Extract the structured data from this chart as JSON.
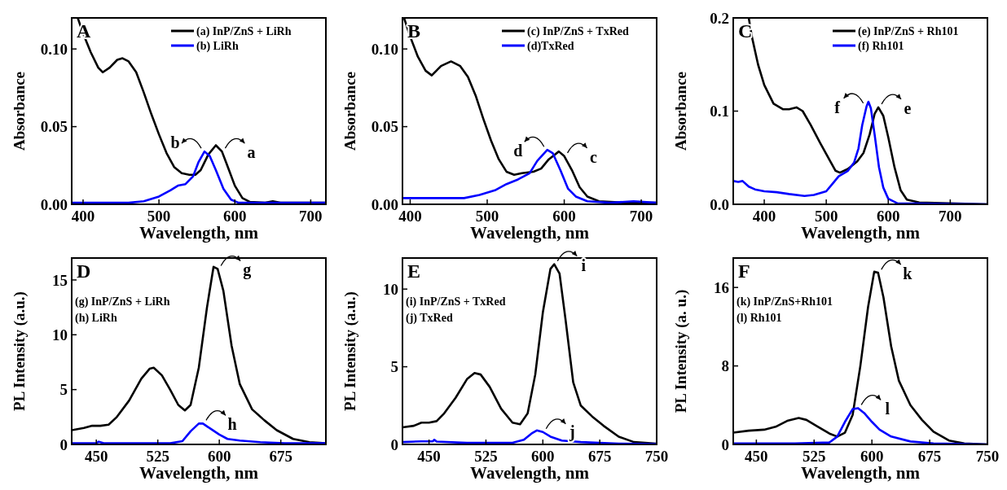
{
  "chart_data": [
    {
      "type": "line",
      "xlabel": "Wavelength, nm",
      "ylabel": "Absorbance",
      "xlim": [
        385,
        720
      ],
      "ylim": [
        0,
        0.12
      ],
      "xticks": [
        400,
        500,
        600,
        700
      ],
      "yticks": [
        {
          "value": 0,
          "label": "0.00"
        },
        {
          "value": 0.05,
          "label": "0.05"
        },
        {
          "value": 0.1,
          "label": "0.10"
        }
      ],
      "legend": "top right",
      "grid": false,
      "annotations": [
        "A",
        {
          "text": "a",
          "x": 583,
          "y": 0.034
        },
        {
          "text": "b",
          "x": 560,
          "y": 0.034
        }
      ],
      "series": [
        {
          "name": "(a) InP/ZnS + LiRh",
          "color": "#000000",
          "x": [
            393,
            400,
            410,
            420,
            426,
            435,
            445,
            452,
            460,
            470,
            480,
            490,
            500,
            510,
            520,
            530,
            540,
            548,
            555,
            565,
            575,
            583,
            590,
            600,
            610,
            620,
            640,
            650,
            660,
            700,
            720
          ],
          "values": [
            0.12,
            0.11,
            0.098,
            0.088,
            0.085,
            0.088,
            0.093,
            0.094,
            0.092,
            0.085,
            0.072,
            0.058,
            0.045,
            0.033,
            0.024,
            0.02,
            0.019,
            0.019,
            0.022,
            0.032,
            0.038,
            0.034,
            0.025,
            0.012,
            0.004,
            0.0015,
            0.001,
            0.002,
            0.001,
            0.001,
            0.001
          ]
        },
        {
          "name": "(b) LiRh",
          "color": "#0000ff",
          "x": [
            385,
            460,
            480,
            500,
            515,
            525,
            535,
            545,
            552,
            560,
            567,
            575,
            585,
            595,
            605,
            720
          ],
          "values": [
            0.001,
            0.001,
            0.002,
            0.005,
            0.009,
            0.012,
            0.013,
            0.018,
            0.027,
            0.034,
            0.031,
            0.022,
            0.01,
            0.003,
            0.001,
            0.001
          ]
        }
      ]
    },
    {
      "type": "line",
      "xlabel": "Wavelength, nm",
      "ylabel": "Absorbance",
      "xlim": [
        390,
        720
      ],
      "ylim": [
        0,
        0.12
      ],
      "xticks": [
        400,
        500,
        600,
        700
      ],
      "yticks": [
        {
          "value": 0,
          "label": "0.00"
        },
        {
          "value": 0.05,
          "label": "0.05"
        },
        {
          "value": 0.1,
          "label": "0.10"
        }
      ],
      "legend": "top right",
      "grid": false,
      "annotations": [
        "B",
        {
          "text": "c",
          "x": 600,
          "y": 0.031
        },
        {
          "text": "d",
          "x": 578,
          "y": 0.035
        }
      ],
      "series": [
        {
          "name": "(c) InP/ZnS + TxRed",
          "color": "#000000",
          "x": [
            392,
            400,
            410,
            420,
            428,
            440,
            453,
            465,
            475,
            485,
            495,
            505,
            515,
            525,
            535,
            545,
            560,
            570,
            580,
            593,
            600,
            610,
            620,
            630,
            645,
            680,
            720
          ],
          "values": [
            0.12,
            0.108,
            0.095,
            0.086,
            0.083,
            0.089,
            0.092,
            0.089,
            0.082,
            0.07,
            0.055,
            0.041,
            0.029,
            0.021,
            0.019,
            0.02,
            0.021,
            0.023,
            0.029,
            0.034,
            0.031,
            0.022,
            0.011,
            0.005,
            0.002,
            0.001,
            0.001
          ]
        },
        {
          "name": "(d)TxRed",
          "color": "#0000ff",
          "x": [
            390,
            420,
            450,
            470,
            490,
            510,
            525,
            540,
            555,
            565,
            578,
            585,
            595,
            605,
            615,
            630,
            660,
            690,
            720
          ],
          "values": [
            0.004,
            0.004,
            0.004,
            0.004,
            0.006,
            0.009,
            0.013,
            0.016,
            0.02,
            0.028,
            0.035,
            0.033,
            0.022,
            0.01,
            0.005,
            0.002,
            0.001,
            0.002,
            0.001
          ]
        }
      ]
    },
    {
      "type": "line",
      "xlabel": "Wavelength, nm",
      "ylabel": "Absorbance",
      "xlim": [
        350,
        760
      ],
      "ylim": [
        0,
        0.2
      ],
      "xticks": [
        400,
        500,
        600,
        700
      ],
      "yticks": [
        {
          "value": 0,
          "label": "0.0"
        },
        {
          "value": 0.1,
          "label": "0.1"
        },
        {
          "value": 0.2,
          "label": "0.2"
        }
      ],
      "legend": "top right",
      "grid": false,
      "annotations": [
        "C",
        {
          "text": "e",
          "x": 584,
          "y": 0.104
        },
        {
          "text": "f",
          "x": 565,
          "y": 0.105
        }
      ],
      "series": [
        {
          "name": "(e) InP/ZnS + Rh101",
          "color": "#000000",
          "x": [
            375,
            380,
            390,
            400,
            415,
            430,
            440,
            452,
            462,
            475,
            490,
            505,
            515,
            522,
            535,
            550,
            560,
            570,
            578,
            584,
            592,
            600,
            610,
            620,
            630,
            650,
            700,
            760
          ],
          "values": [
            0.2,
            0.18,
            0.15,
            0.128,
            0.108,
            0.102,
            0.102,
            0.104,
            0.1,
            0.085,
            0.066,
            0.048,
            0.036,
            0.034,
            0.038,
            0.046,
            0.055,
            0.075,
            0.097,
            0.104,
            0.095,
            0.072,
            0.04,
            0.015,
            0.005,
            0.002,
            0.001,
            0
          ]
        },
        {
          "name": "(f) Rh101",
          "color": "#0000ff",
          "x": [
            350,
            358,
            365,
            375,
            385,
            400,
            420,
            440,
            465,
            480,
            500,
            510,
            520,
            535,
            545,
            552,
            558,
            565,
            568,
            572,
            578,
            585,
            592,
            600,
            615,
            760
          ],
          "values": [
            0.025,
            0.024,
            0.025,
            0.019,
            0.016,
            0.014,
            0.013,
            0.011,
            0.009,
            0.01,
            0.014,
            0.022,
            0.03,
            0.036,
            0.045,
            0.06,
            0.085,
            0.105,
            0.11,
            0.103,
            0.075,
            0.04,
            0.018,
            0.006,
            0.001,
            0
          ]
        }
      ]
    },
    {
      "type": "line",
      "xlabel": "Wavelength, nm",
      "ylabel": "PL Intensity (a.u.)",
      "xlim": [
        420,
        730
      ],
      "ylim": [
        0,
        17
      ],
      "xticks": [
        450,
        525,
        600,
        675
      ],
      "yticks": [
        0,
        5,
        10,
        15
      ],
      "grid": false,
      "annotations": [
        "D",
        "(g) InP/ZnS + LiRh",
        "(h) LiRh",
        {
          "text": "g",
          "x": 598,
          "y": 16
        },
        {
          "text": "h",
          "x": 580,
          "y": 1.9
        }
      ],
      "series": [
        {
          "color": "#000000",
          "x": [
            420,
            435,
            445,
            455,
            465,
            475,
            490,
            505,
            515,
            520,
            530,
            540,
            550,
            558,
            565,
            575,
            585,
            593,
            598,
            605,
            615,
            625,
            640,
            655,
            670,
            690,
            710,
            730
          ],
          "values": [
            1.3,
            1.5,
            1.7,
            1.7,
            1.8,
            2.5,
            4,
            6,
            6.9,
            7,
            6.3,
            5,
            3.6,
            3.1,
            3.6,
            7,
            12.5,
            16.2,
            16,
            14,
            9,
            5.5,
            3.2,
            2.2,
            1.3,
            0.5,
            0.2,
            0.1
          ]
        },
        {
          "color": "#0000ff",
          "x": [
            420,
            450,
            453,
            460,
            540,
            555,
            565,
            575,
            580,
            590,
            600,
            610,
            625,
            650,
            680,
            730
          ],
          "values": [
            0.1,
            0.1,
            0.25,
            0.1,
            0.1,
            0.3,
            1.2,
            1.9,
            1.9,
            1.4,
            0.9,
            0.5,
            0.35,
            0.2,
            0.1,
            0.1
          ]
        }
      ]
    },
    {
      "type": "line",
      "xlabel": "Wavelength, nm",
      "ylabel": "PL Intensity (a.u.)",
      "xlim": [
        415,
        750
      ],
      "ylim": [
        0,
        12
      ],
      "xticks": [
        450,
        525,
        600,
        675,
        750
      ],
      "yticks": [
        0,
        5,
        10
      ],
      "grid": false,
      "annotations": [
        "E",
        "(i) InP/ZnS + TxRed",
        "(j) TxRed",
        {
          "text": "i",
          "x": 615,
          "y": 11.6
        },
        {
          "text": "j",
          "x": 600,
          "y": 0.8
        }
      ],
      "series": [
        {
          "color": "#000000",
          "x": [
            415,
            430,
            440,
            450,
            460,
            470,
            485,
            500,
            510,
            518,
            530,
            545,
            560,
            570,
            580,
            590,
            600,
            610,
            615,
            622,
            630,
            640,
            650,
            665,
            680,
            700,
            720,
            750
          ],
          "values": [
            1.1,
            1.2,
            1.4,
            1.4,
            1.5,
            2,
            3,
            4.2,
            4.6,
            4.5,
            3.7,
            2.3,
            1.4,
            1.3,
            2,
            4.5,
            8.5,
            11.3,
            11.6,
            11,
            8,
            4,
            2.5,
            1.8,
            1.2,
            0.5,
            0.15,
            0.05
          ]
        },
        {
          "color": "#0000ff",
          "x": [
            415,
            440,
            455,
            457,
            460,
            500,
            560,
            575,
            585,
            592,
            600,
            610,
            625,
            650,
            700,
            750
          ],
          "values": [
            0.15,
            0.2,
            0.2,
            0.3,
            0.18,
            0.1,
            0.1,
            0.3,
            0.7,
            0.9,
            0.8,
            0.5,
            0.25,
            0.15,
            0.05,
            0.03
          ]
        }
      ]
    },
    {
      "type": "line",
      "xlabel": "Wavelength, nm",
      "ylabel": "PL Intensity (a. u.)",
      "xlim": [
        420,
        750
      ],
      "ylim": [
        0,
        19
      ],
      "xticks": [
        450,
        525,
        600,
        675,
        750
      ],
      "yticks": [
        0,
        8,
        16
      ],
      "grid": false,
      "annotations": [
        "F",
        "(k) InP/ZnS+Rh101",
        "(l)  Rh101",
        {
          "text": "k",
          "x": 608,
          "y": 17.5
        },
        {
          "text": "l",
          "x": 582,
          "y": 3.7
        }
      ],
      "series": [
        {
          "color": "#000000",
          "x": [
            420,
            440,
            460,
            475,
            490,
            505,
            515,
            530,
            545,
            555,
            565,
            575,
            585,
            595,
            603,
            608,
            615,
            625,
            635,
            650,
            665,
            680,
            700,
            720,
            750
          ],
          "values": [
            1.2,
            1.4,
            1.5,
            1.8,
            2.4,
            2.7,
            2.5,
            1.8,
            1.1,
            0.8,
            1.2,
            3,
            8,
            14,
            17.6,
            17.5,
            15,
            10,
            6.5,
            4,
            2.5,
            1.3,
            0.4,
            0.1,
            0
          ]
        },
        {
          "color": "#0000ff",
          "x": [
            420,
            500,
            545,
            555,
            565,
            575,
            582,
            590,
            600,
            610,
            625,
            650,
            680,
            750
          ],
          "values": [
            0.1,
            0.1,
            0.2,
            0.8,
            2.3,
            3.6,
            3.7,
            3.2,
            2.3,
            1.5,
            0.8,
            0.3,
            0.1,
            0
          ]
        }
      ]
    }
  ]
}
